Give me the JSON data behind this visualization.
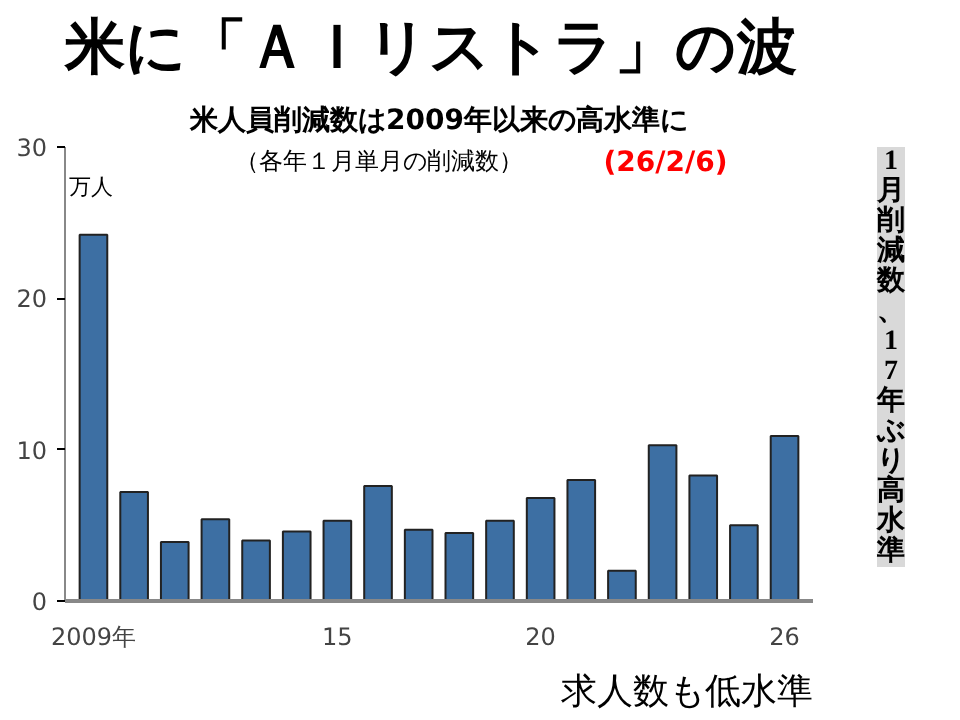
{
  "chart_data": {
    "type": "bar",
    "title": "米に「ＡＩリストラ」の波",
    "subtitle": "米人員削減数は2009年以来の高水準に",
    "ylabel": "万人",
    "x": [
      2009,
      2010,
      2011,
      2012,
      2013,
      2014,
      2015,
      2016,
      2017,
      2018,
      2019,
      2020,
      2021,
      2022,
      2023,
      2024,
      2025,
      2026
    ],
    "values": [
      24.2,
      7.2,
      3.9,
      5.4,
      4.0,
      4.6,
      5.3,
      7.6,
      4.7,
      4.5,
      5.3,
      6.8,
      8.0,
      2.0,
      10.3,
      8.3,
      5.0,
      10.9
    ],
    "color": "#3d6fa3",
    "xlim": [
      2008.3,
      2026.7
    ],
    "xticks": [
      {
        "value": 2009,
        "label": "2009年"
      },
      {
        "value": 2015,
        "label": "15"
      },
      {
        "value": 2020,
        "label": "20"
      },
      {
        "value": 2026,
        "label": "26"
      }
    ],
    "ylim": [
      0,
      30
    ],
    "yticks": [
      0,
      10,
      20,
      30
    ],
    "grid": false,
    "annotations": [
      "（各年１月単月の削減数）",
      "(26/2/6)",
      "1月削減数、17年ぶり高水準",
      "求人数も低水準"
    ]
  }
}
